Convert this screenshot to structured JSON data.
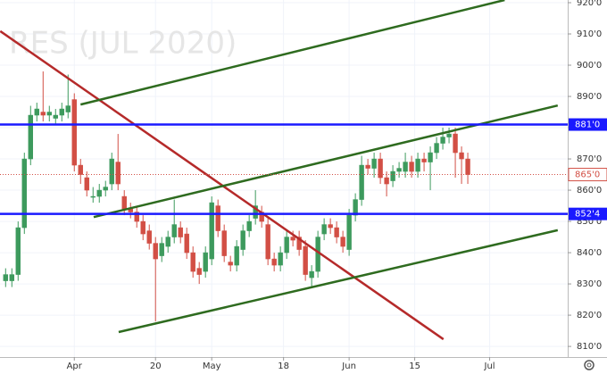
{
  "chart_data": {
    "type": "candlestick",
    "watermark": "RES (JUL 2020)",
    "xlim": [
      -0.9,
      90
    ],
    "xticks": [
      {
        "value": 11,
        "label": "Apr"
      },
      {
        "value": 24,
        "label": "20"
      },
      {
        "value": 33,
        "label": "May"
      },
      {
        "value": 44.5,
        "label": "18"
      },
      {
        "value": 55,
        "label": "Jun"
      },
      {
        "value": 65.5,
        "label": "15"
      },
      {
        "value": 77.5,
        "label": "Jul"
      }
    ],
    "ylim": [
      806.6,
      920.86
    ],
    "yticks": [
      {
        "value": 810,
        "label": "810'0"
      },
      {
        "value": 820,
        "label": "820'0"
      },
      {
        "value": 830,
        "label": "830'0"
      },
      {
        "value": 840,
        "label": "840'0"
      },
      {
        "value": 850,
        "label": "850'0"
      },
      {
        "value": 860,
        "label": "860'0"
      },
      {
        "value": 870,
        "label": "870'0"
      },
      {
        "value": 880,
        "label": "880'0"
      },
      {
        "value": 890,
        "label": "890'0"
      },
      {
        "value": 900,
        "label": "900'0"
      },
      {
        "value": 910,
        "label": "910'0"
      },
      {
        "value": 920,
        "label": "920'0"
      }
    ],
    "grid": true,
    "up_color": "#3d9a5d",
    "down_color": "#d24f45",
    "open": [
      831,
      831,
      833,
      848,
      870,
      884,
      885,
      884,
      883,
      884,
      885,
      889,
      868,
      864,
      858,
      858,
      860,
      862,
      869,
      858,
      854,
      853,
      850,
      847,
      843,
      839,
      842,
      845,
      848,
      846,
      840,
      835,
      834,
      838,
      855,
      847,
      837,
      836,
      841,
      847,
      851,
      853,
      849,
      838,
      836,
      840,
      845,
      845,
      842,
      832,
      834,
      846,
      849,
      848,
      845,
      841,
      852,
      857,
      868,
      867,
      870,
      864,
      863,
      866,
      866,
      869,
      866,
      870,
      869,
      872,
      875,
      877,
      878,
      872,
      870
    ],
    "close": [
      833,
      833,
      848,
      870,
      884,
      886,
      884,
      885,
      884,
      886,
      887,
      868,
      865,
      860,
      858,
      860,
      861,
      870,
      862,
      854,
      853,
      850,
      846,
      843,
      838,
      843,
      845,
      849,
      845,
      840,
      834,
      833,
      840,
      856,
      847,
      839,
      836,
      842,
      847,
      850,
      855,
      850,
      838,
      836,
      840,
      845,
      844,
      841,
      833,
      834,
      845,
      849,
      848,
      845,
      842,
      852,
      857,
      868,
      867,
      870,
      864,
      862,
      866,
      867,
      869,
      866,
      870,
      869,
      872,
      875,
      877,
      878,
      872,
      870,
      865
    ],
    "high": [
      835,
      835,
      850,
      872,
      887,
      888,
      898,
      887,
      886,
      888,
      897,
      891,
      870,
      866,
      861,
      862,
      863,
      872,
      878,
      860,
      856,
      855,
      852,
      849,
      845,
      845,
      847,
      857,
      850,
      848,
      842,
      837,
      842,
      858,
      857,
      849,
      839,
      844,
      849,
      852,
      860,
      855,
      851,
      840,
      842,
      847,
      847,
      847,
      844,
      836,
      847,
      851,
      851,
      850,
      847,
      854,
      859,
      871,
      870,
      872,
      872,
      866,
      868,
      869,
      872,
      871,
      872,
      872,
      874,
      877,
      880,
      880,
      880,
      874,
      872
    ],
    "low": [
      829,
      829,
      831,
      846,
      868,
      882,
      882,
      882,
      881,
      882,
      883,
      866,
      862,
      858,
      856,
      856,
      858,
      860,
      860,
      852,
      851,
      848,
      844,
      841,
      818,
      837,
      840,
      843,
      843,
      838,
      832,
      830,
      832,
      836,
      845,
      837,
      834,
      834,
      839,
      845,
      849,
      848,
      836,
      834,
      834,
      838,
      842,
      839,
      831,
      829,
      832,
      844,
      846,
      843,
      840,
      839,
      850,
      855,
      865,
      864,
      862,
      858,
      861,
      864,
      864,
      864,
      864,
      866,
      860,
      870,
      873,
      875,
      864,
      862,
      862
    ],
    "lines": [
      {
        "color": "#b52a2a",
        "x": [
          -0.86,
          70.1
        ],
        "y": [
          910.9,
          812.3
        ]
      },
      {
        "color": "#2e6b1f",
        "x": [
          12,
          79.9
        ],
        "y": [
          887.4,
          920.86
        ]
      },
      {
        "color": "#2e6b1f",
        "x": [
          14.1,
          88.4
        ],
        "y": [
          851.4,
          887.1
        ]
      },
      {
        "color": "#2e6b1f",
        "x": [
          18.1,
          88.4
        ],
        "y": [
          814.6,
          847.2
        ]
      }
    ],
    "levels": [
      {
        "value": 881,
        "label": "881'0",
        "color": "#1a1aff"
      },
      {
        "value": 852.4,
        "label": "852'4",
        "color": "#1a1aff"
      }
    ],
    "last_price": {
      "value": 865,
      "label": "865'0",
      "color": "#d24f45"
    }
  }
}
